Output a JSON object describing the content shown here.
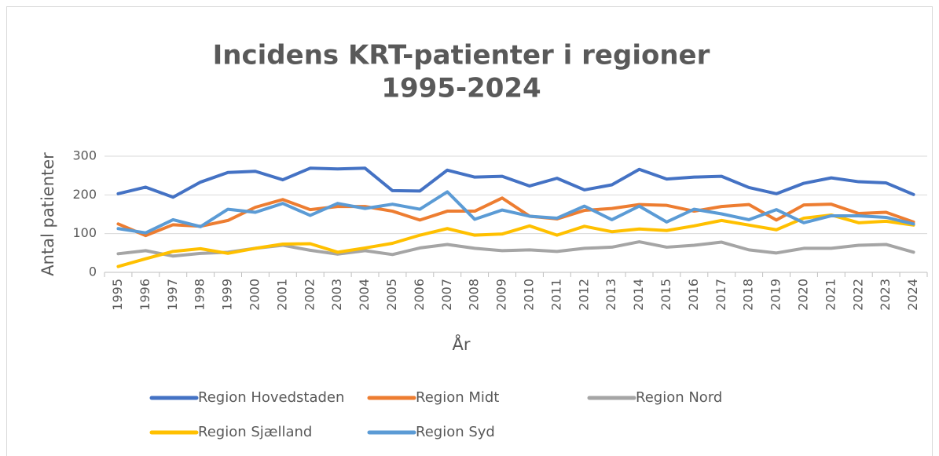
{
  "chart_data": {
    "type": "line",
    "title": [
      "Incidens KRT-patienter i regioner",
      "1995-2024"
    ],
    "x_label": "År",
    "y_label": "Antal patienter",
    "categories": [
      "1995",
      "1996",
      "1997",
      "1998",
      "1999",
      "2000",
      "2001",
      "2002",
      "2003",
      "2004",
      "2005",
      "2006",
      "2007",
      "2008",
      "2009",
      "2010",
      "2011",
      "2012",
      "2013",
      "2014",
      "2015",
      "2016",
      "2017",
      "2018",
      "2019",
      "2020",
      "2021",
      "2022",
      "2023",
      "2024"
    ],
    "series": [
      {
        "name": "Region Hovedstaden",
        "color": "#4472c4",
        "values": [
          203,
          220,
          194,
          233,
          258,
          261,
          239,
          269,
          267,
          269,
          211,
          210,
          264,
          246,
          248,
          223,
          243,
          213,
          226,
          266,
          241,
          246,
          248,
          219,
          203,
          230,
          244,
          234,
          231,
          201
        ]
      },
      {
        "name": "Region Midt",
        "color": "#ed7d31",
        "values": [
          125,
          95,
          123,
          119,
          134,
          168,
          188,
          162,
          170,
          170,
          158,
          135,
          158,
          158,
          192,
          145,
          138,
          160,
          165,
          175,
          173,
          158,
          170,
          175,
          135,
          174,
          176,
          152,
          155,
          130
        ]
      },
      {
        "name": "Region Nord",
        "color": "#a5a5a5",
        "values": [
          48,
          56,
          42,
          49,
          52,
          62,
          70,
          57,
          47,
          56,
          46,
          63,
          72,
          62,
          56,
          58,
          54,
          62,
          65,
          79,
          65,
          70,
          78,
          58,
          50,
          62,
          62,
          70,
          72,
          52
        ]
      },
      {
        "name": "Region Sjælland",
        "color": "#ffc000",
        "values": [
          15,
          35,
          54,
          61,
          49,
          62,
          73,
          74,
          52,
          63,
          75,
          96,
          113,
          96,
          99,
          120,
          96,
          119,
          105,
          112,
          108,
          120,
          134,
          122,
          110,
          140,
          148,
          128,
          132,
          122
        ]
      },
      {
        "name": "Region Syd",
        "color": "#5b9bd5",
        "values": [
          113,
          102,
          136,
          118,
          163,
          155,
          178,
          147,
          178,
          165,
          176,
          163,
          208,
          137,
          161,
          145,
          140,
          171,
          136,
          171,
          130,
          163,
          151,
          136,
          162,
          128,
          146,
          146,
          142,
          125
        ]
      }
    ],
    "ylim": [
      0,
      300
    ],
    "yticks": [
      0,
      100,
      200,
      300
    ],
    "grid": true,
    "legend": "bottom"
  }
}
